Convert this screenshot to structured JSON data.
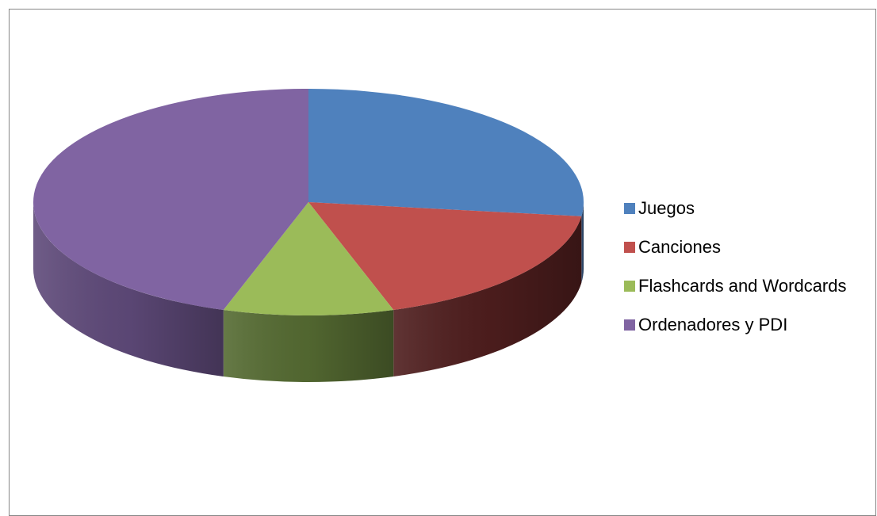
{
  "chart_data": {
    "type": "pie",
    "style": "3d",
    "title": "",
    "legend_position": "right",
    "slices": [
      {
        "name": "Juegos",
        "value": 27,
        "color": "#4F81BD",
        "side_color": "#2E4A70"
      },
      {
        "name": "Canciones",
        "value": 18,
        "color": "#C0504D",
        "side_color": "#4F1E1E"
      },
      {
        "name": "Flashcards and Wordcards",
        "value": 10,
        "color": "#9BBB59",
        "side_color": "#556B32"
      },
      {
        "name": "Ordenadores y PDI",
        "value": 45,
        "color": "#8064A2",
        "side_color": "#5F4A7A"
      }
    ]
  }
}
